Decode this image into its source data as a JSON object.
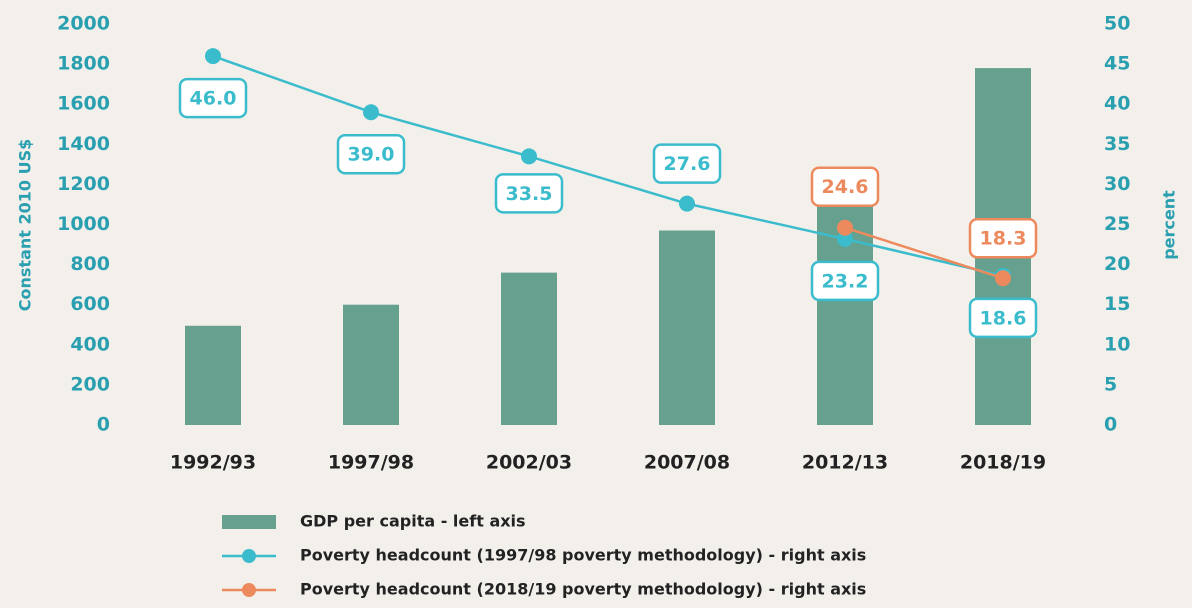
{
  "chart_data": {
    "type": "bar",
    "categories": [
      "1992/93",
      "1997/98",
      "2002/03",
      "2007/08",
      "2012/13",
      "2018/19"
    ],
    "ylabel": "Constant 2010 US$",
    "y2label": "percent",
    "ylim": [
      0,
      2000
    ],
    "yticks": [
      0,
      200,
      400,
      600,
      800,
      1000,
      1200,
      1400,
      1600,
      1800,
      2000
    ],
    "y2lim": [
      0,
      50
    ],
    "y2ticks": [
      0,
      5,
      10,
      15,
      20,
      25,
      30,
      35,
      40,
      45,
      50
    ],
    "grid": false,
    "series": [
      {
        "name": "GDP per capita - left axis",
        "type": "bar",
        "color": "#66a08e",
        "values": [
          495,
          600,
          760,
          970,
          1100,
          1780
        ]
      },
      {
        "name": "Poverty headcount (1997/98 poverty methodology) - right axis",
        "type": "line",
        "axis": "y2",
        "color": "#3bbccc",
        "values": [
          46.0,
          39.0,
          33.5,
          27.6,
          23.2,
          18.6
        ],
        "value_labels": [
          "46.0",
          "39.0",
          "33.5",
          "27.6",
          "23.2",
          "18.6"
        ]
      },
      {
        "name": "Poverty headcount (2018/19 poverty methodology) - right axis",
        "type": "line",
        "axis": "y2",
        "color": "#ec8a5e",
        "values": [
          null,
          null,
          null,
          null,
          24.6,
          18.3
        ],
        "value_labels": [
          null,
          null,
          null,
          null,
          "24.6",
          "18.3"
        ]
      }
    ]
  }
}
